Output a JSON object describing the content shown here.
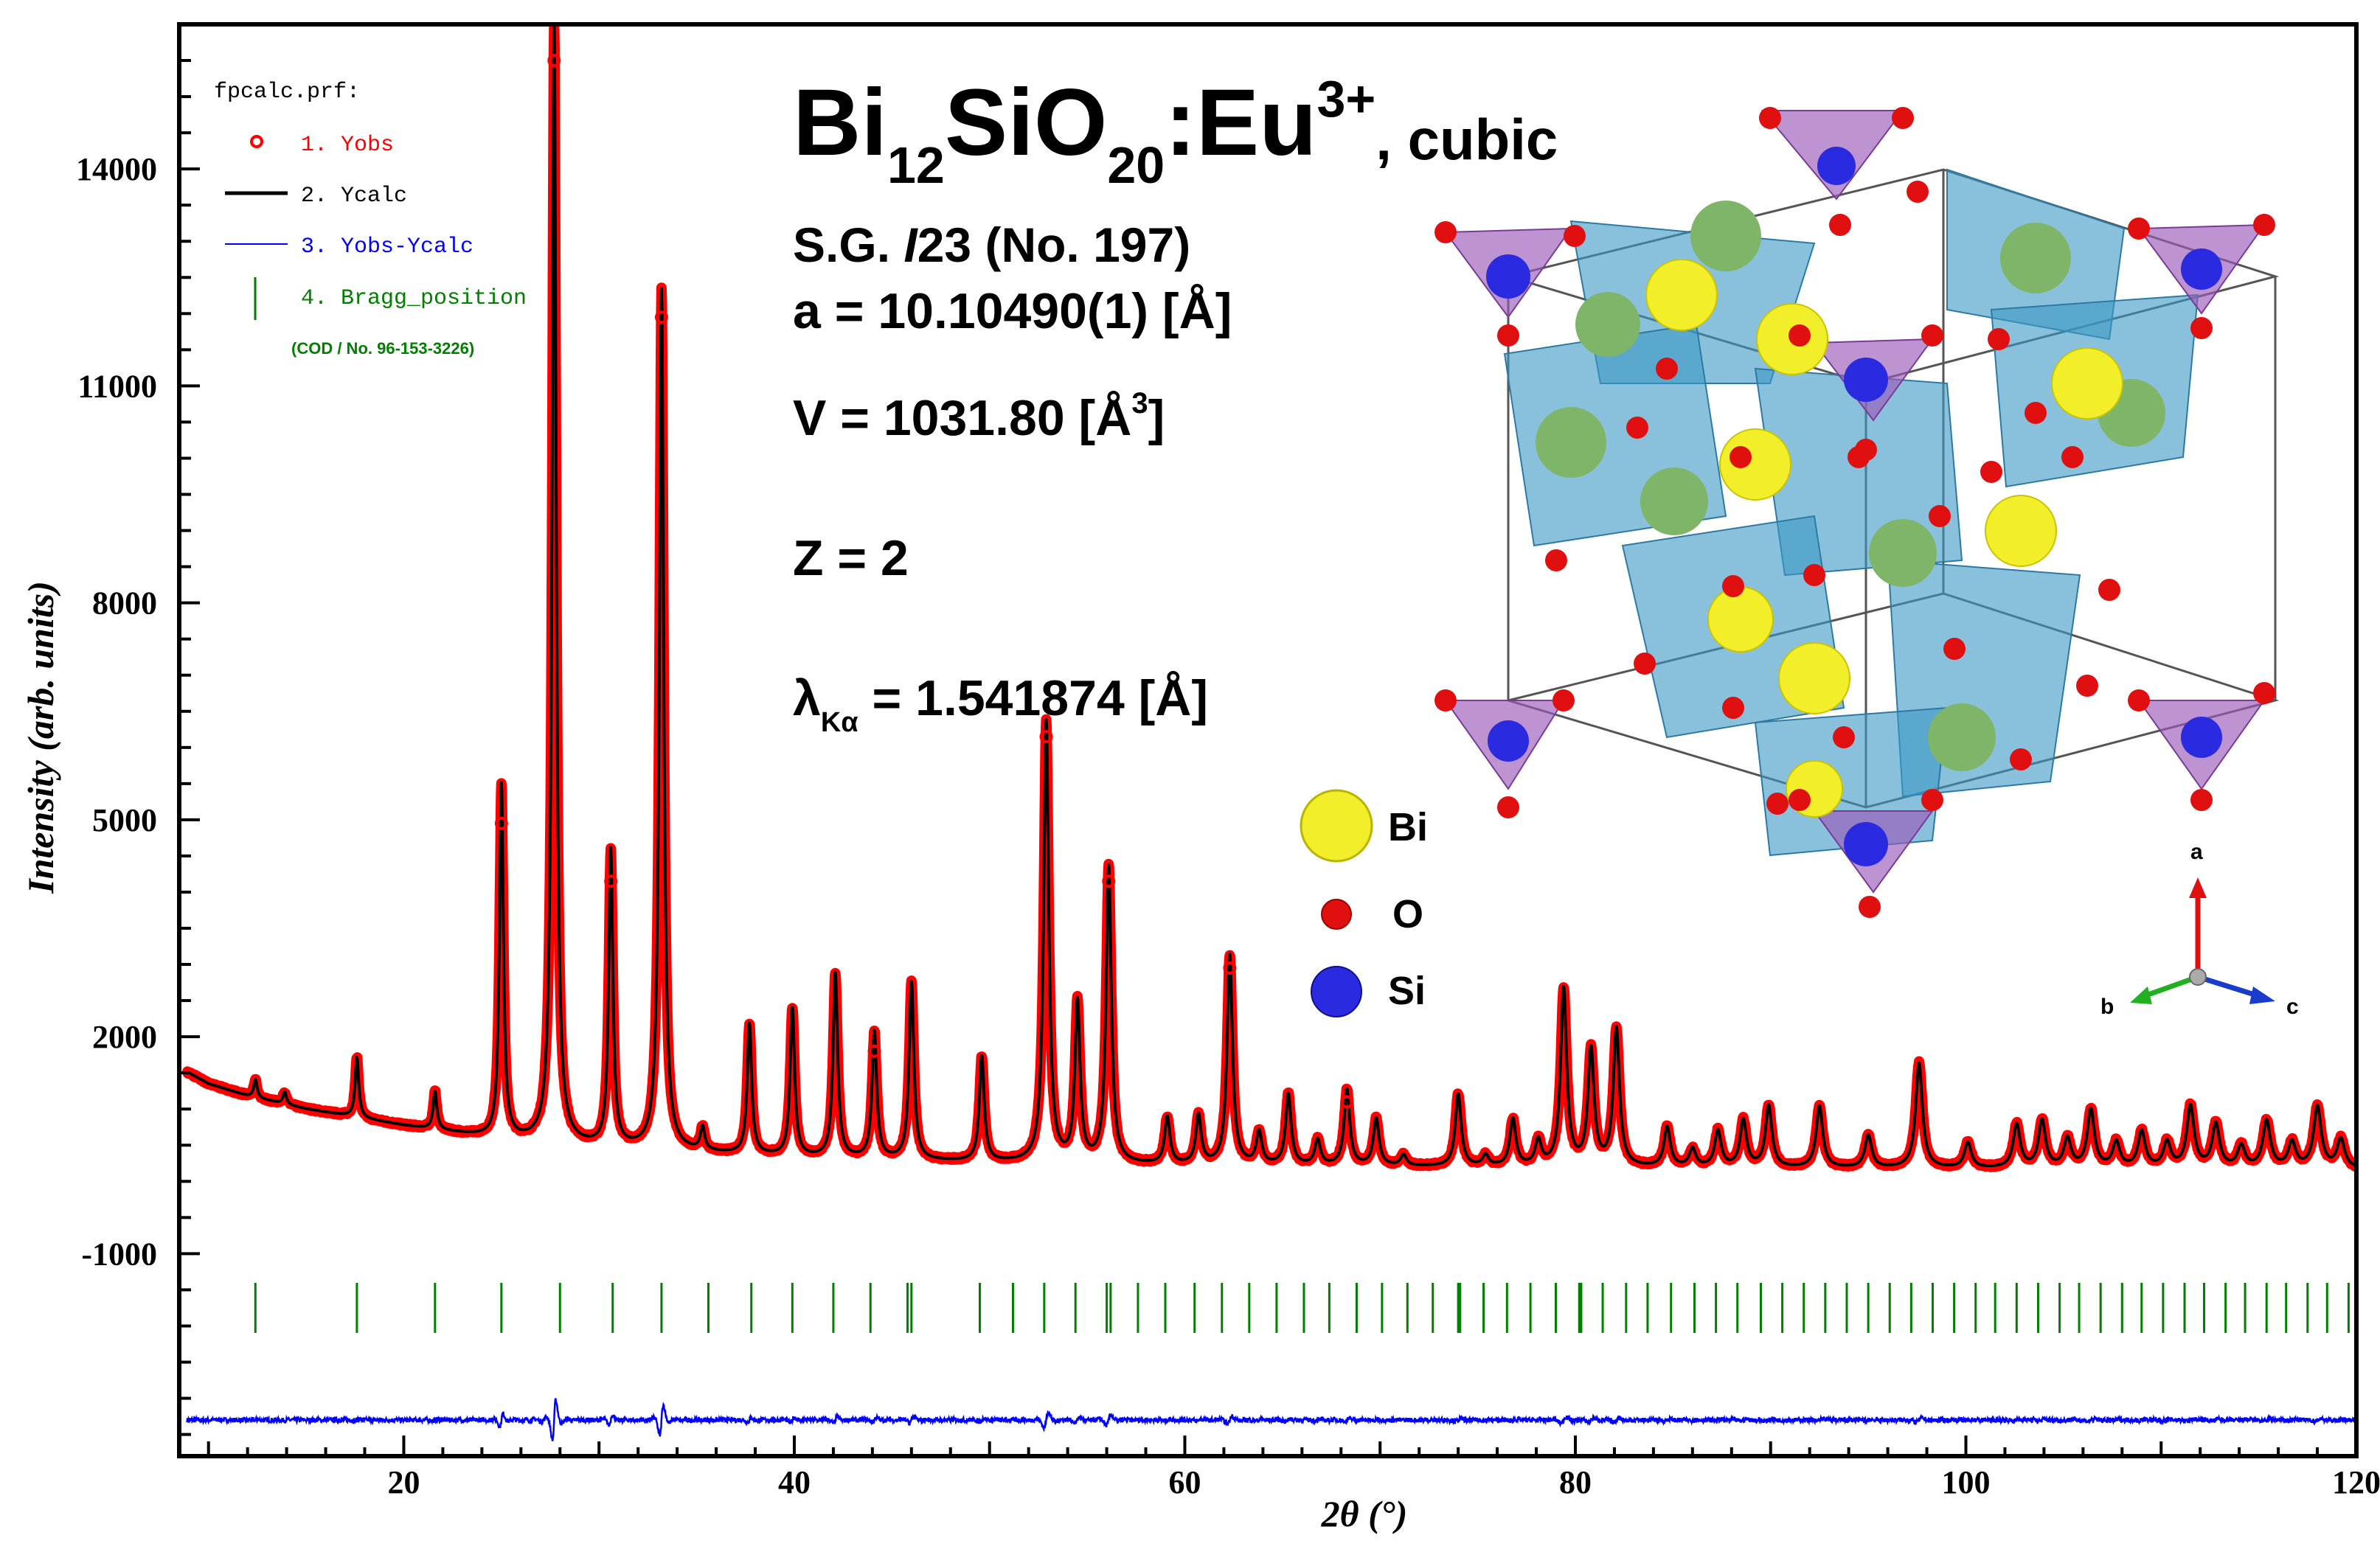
{
  "chart_data": {
    "type": "line",
    "xlabel": "2θ (°)",
    "ylabel": "Intensity (arb. units)",
    "xlim": [
      8.5,
      120
    ],
    "ylim": [
      -3800,
      16000
    ],
    "xticks": [
      20,
      40,
      60,
      80,
      100,
      120
    ],
    "yticks": [
      14000,
      11000,
      8000,
      5000,
      2000,
      -1000
    ],
    "legend": {
      "title": "fpcalc.prf:",
      "entries": [
        {
          "label": "1. Yobs",
          "color": "#ff0000"
        },
        {
          "label": "2. Ycalc",
          "color": "#000000"
        },
        {
          "label": "3. Yobs-Ycalc",
          "color": "#0000ff"
        },
        {
          "label": "4. Bragg_position",
          "color": "#007f00"
        }
      ],
      "note": "(COD / No. 96-153-3226)"
    },
    "background": {
      "points": [
        [
          9,
          1500
        ],
        [
          10,
          1350
        ],
        [
          12,
          1180
        ],
        [
          15,
          1000
        ],
        [
          20,
          770
        ],
        [
          25,
          580
        ],
        [
          30,
          470
        ],
        [
          40,
          330
        ],
        [
          50,
          260
        ],
        [
          60,
          220
        ],
        [
          80,
          190
        ],
        [
          100,
          175
        ],
        [
          120,
          170
        ]
      ]
    },
    "peaks": [
      {
        "x": 12.4,
        "y": 250
      },
      {
        "x": 13.9,
        "y": 170
      },
      {
        "x": 17.6,
        "y": 830
      },
      {
        "x": 21.6,
        "y": 520
      },
      {
        "x": 25.0,
        "y": 4900
      },
      {
        "x": 27.7,
        "y": 15500
      },
      {
        "x": 30.6,
        "y": 4100
      },
      {
        "x": 33.2,
        "y": 11900
      },
      {
        "x": 35.3,
        "y": 320
      },
      {
        "x": 37.7,
        "y": 1800
      },
      {
        "x": 39.9,
        "y": 2050
      },
      {
        "x": 42.1,
        "y": 2550
      },
      {
        "x": 44.1,
        "y": 1750
      },
      {
        "x": 46.0,
        "y": 2450
      },
      {
        "x": 49.6,
        "y": 1450
      },
      {
        "x": 52.9,
        "y": 6100
      },
      {
        "x": 54.5,
        "y": 2200
      },
      {
        "x": 56.1,
        "y": 4100
      },
      {
        "x": 59.1,
        "y": 650
      },
      {
        "x": 60.7,
        "y": 680
      },
      {
        "x": 62.3,
        "y": 2900
      },
      {
        "x": 63.8,
        "y": 450
      },
      {
        "x": 65.3,
        "y": 980
      },
      {
        "x": 66.8,
        "y": 350
      },
      {
        "x": 68.3,
        "y": 1050
      },
      {
        "x": 69.8,
        "y": 650
      },
      {
        "x": 71.2,
        "y": 150
      },
      {
        "x": 74.0,
        "y": 1000
      },
      {
        "x": 75.4,
        "y": 150
      },
      {
        "x": 76.8,
        "y": 650
      },
      {
        "x": 78.1,
        "y": 350
      },
      {
        "x": 79.4,
        "y": 2450
      },
      {
        "x": 80.8,
        "y": 1600
      },
      {
        "x": 82.1,
        "y": 1900
      },
      {
        "x": 84.7,
        "y": 550
      },
      {
        "x": 86.0,
        "y": 250
      },
      {
        "x": 87.3,
        "y": 500
      },
      {
        "x": 88.6,
        "y": 650
      },
      {
        "x": 89.9,
        "y": 850
      },
      {
        "x": 92.5,
        "y": 850
      },
      {
        "x": 95.0,
        "y": 450
      },
      {
        "x": 97.6,
        "y": 1450
      },
      {
        "x": 100.1,
        "y": 350
      },
      {
        "x": 102.6,
        "y": 600
      },
      {
        "x": 103.9,
        "y": 650
      },
      {
        "x": 105.2,
        "y": 400
      },
      {
        "x": 106.4,
        "y": 800
      },
      {
        "x": 107.7,
        "y": 350
      },
      {
        "x": 109.0,
        "y": 500
      },
      {
        "x": 110.3,
        "y": 350
      },
      {
        "x": 111.5,
        "y": 850
      },
      {
        "x": 112.8,
        "y": 600
      },
      {
        "x": 114.1,
        "y": 300
      },
      {
        "x": 115.4,
        "y": 650
      },
      {
        "x": 116.7,
        "y": 350
      },
      {
        "x": 118.0,
        "y": 850
      },
      {
        "x": 119.2,
        "y": 400
      }
    ],
    "bragg_positions": [
      12.4,
      17.6,
      21.6,
      25.0,
      28.0,
      30.7,
      33.2,
      35.6,
      37.8,
      39.9,
      42.0,
      43.9,
      45.8,
      46.0,
      49.5,
      51.2,
      52.8,
      54.4,
      56.0,
      56.2,
      57.6,
      59.0,
      60.5,
      61.9,
      63.3,
      64.7,
      66.1,
      67.4,
      68.8,
      70.1,
      71.4,
      72.7,
      74.0,
      74.1,
      75.3,
      76.5,
      77.7,
      79.0,
      80.2,
      80.3,
      81.4,
      82.6,
      83.7,
      84.9,
      86.1,
      87.2,
      88.3,
      89.5,
      90.6,
      91.7,
      92.8,
      93.9,
      95.0,
      96.1,
      97.2,
      98.3,
      99.4,
      100.5,
      101.5,
      102.6,
      103.7,
      104.8,
      105.8,
      106.9,
      108.0,
      109.0,
      110.1,
      111.2,
      112.2,
      113.3,
      114.3,
      115.4,
      116.4,
      117.5,
      118.5,
      119.6
    ],
    "bragg_y": -1750,
    "difference_baseline": -3300,
    "markers": [
      {
        "x": 27.7,
        "y": 15500
      },
      {
        "x": 33.2,
        "y": 11950
      },
      {
        "x": 52.9,
        "y": 6150
      },
      {
        "x": 25.0,
        "y": 4950
      },
      {
        "x": 30.6,
        "y": 4150
      },
      {
        "x": 56.1,
        "y": 4150
      },
      {
        "x": 62.3,
        "y": 2950
      },
      {
        "x": 44.1,
        "y": 1800
      },
      {
        "x": 68.3,
        "y": 1100
      }
    ]
  },
  "info": {
    "formula_parts": [
      "Bi",
      "12",
      "SiO",
      "20",
      ":Eu",
      "3+"
    ],
    "system": ", cubic",
    "space_group": [
      "S.G. ",
      "I",
      "23 (No. 197)"
    ],
    "lattice": "a = 10.10490(1) [Å]",
    "volume": [
      "V = 1031.80 [Å",
      "3",
      "]"
    ],
    "z": "Z = 2",
    "wavelength": [
      "λ",
      "Kα",
      " = 1.541874 [Å]"
    ]
  },
  "structure_legend": [
    {
      "label": "Bi",
      "color": "#f2ef2a"
    },
    {
      "label": "O",
      "color": "#e01010"
    },
    {
      "label": "Si",
      "color": "#2a2ae0"
    }
  ],
  "axes_indicator": {
    "a": "a",
    "b": "b",
    "c": "c"
  }
}
